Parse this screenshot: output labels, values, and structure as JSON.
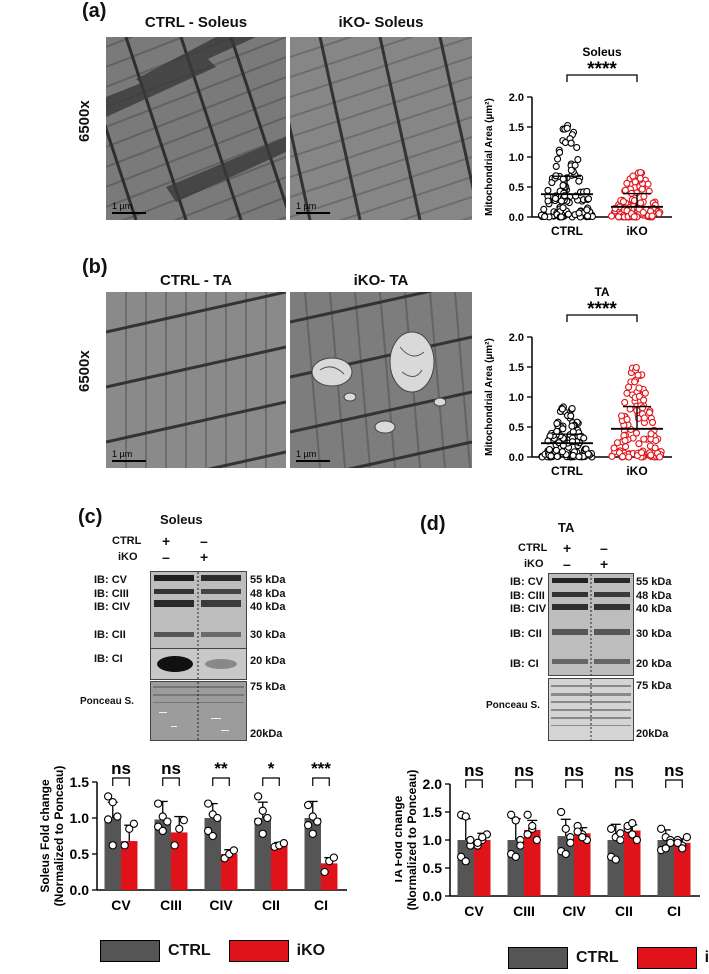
{
  "panels": {
    "a": {
      "letter": "(a)",
      "titles": [
        "CTRL - Soleus",
        "iKO- Soleus"
      ],
      "magnification": "6500x",
      "scale": [
        "1 µm",
        "1 µm"
      ]
    },
    "b": {
      "letter": "(b)",
      "titles": [
        "CTRL - TA",
        "iKO- TA"
      ],
      "magnification": "6500x",
      "scale": [
        "1 µm",
        "1 µm"
      ]
    },
    "c": {
      "letter": "(c)",
      "title": "Soleus",
      "cond_rows": [
        {
          "label": "CTRL",
          "s1": "+",
          "s2": "–"
        },
        {
          "label": "iKO",
          "s1": "–",
          "s2": "+"
        }
      ],
      "blot_labels": [
        "IB: CV",
        "IB: CIII",
        "IB: CIV",
        "IB: CII",
        "IB: CI",
        "Ponceau S."
      ],
      "kda": [
        "55 kDa",
        "48 kDa",
        "40 kDa",
        "30 kDa",
        "20 kDa",
        "75 kDa",
        "20kDa"
      ]
    },
    "d": {
      "letter": "(d)",
      "title": "TA",
      "cond_rows": [
        {
          "label": "CTRL",
          "s1": "+",
          "s2": "–"
        },
        {
          "label": "iKO",
          "s1": "–",
          "s2": "+"
        }
      ],
      "blot_labels": [
        "IB: CV",
        "IB: CIII",
        "IB: CIV",
        "IB: CII",
        "IB: CI",
        "Ponceau S."
      ],
      "kda": [
        "55 kDa",
        "48 kDa",
        "40 kDa",
        "30 kDa",
        "20 kDa",
        "75 kDa",
        "20kDa"
      ]
    }
  },
  "colors": {
    "ctrl": "#555555",
    "iko": "#e0131a",
    "ctrl_point": "#ffffff",
    "iko_point": "#e0131a"
  },
  "legend": {
    "ctrl": "CTRL",
    "iko": "iKO"
  },
  "chart_data": [
    {
      "id": "soleus-area",
      "type": "scatter",
      "title": "Soleus",
      "ylabel": "Mitochondrial Area (µm²)",
      "ylim": [
        0,
        2.0
      ],
      "yticks": [
        "0.0",
        "0.5",
        "1.0",
        "1.5",
        "2.0"
      ],
      "categories": [
        "CTRL",
        "iKO"
      ],
      "means": [
        0.38,
        0.17
      ],
      "sd": [
        0.3,
        0.22
      ],
      "significance": "****",
      "ranges": [
        [
          0.0,
          1.62
        ],
        [
          0.0,
          0.8
        ]
      ]
    },
    {
      "id": "ta-area",
      "type": "scatter",
      "title": "TA",
      "ylabel": "Mitochondrial Area (µm²)",
      "ylim": [
        0,
        2.0
      ],
      "yticks": [
        "0.0",
        "0.5",
        "1.0",
        "1.5",
        "2.0"
      ],
      "categories": [
        "CTRL",
        "iKO"
      ],
      "means": [
        0.23,
        0.47
      ],
      "sd": [
        0.15,
        0.37
      ],
      "significance": "****",
      "ranges": [
        [
          0.0,
          0.85
        ],
        [
          0.0,
          1.52
        ]
      ]
    },
    {
      "id": "soleus-fold",
      "type": "bar",
      "ylabel_lines": [
        "Soleus Fold change",
        "(Normalized to Ponceau)"
      ],
      "ylim": [
        0,
        1.5
      ],
      "yticks": [
        "0.0",
        "0.5",
        "1.0",
        "1.5"
      ],
      "categories": [
        "CV",
        "CIII",
        "CIV",
        "CII",
        "CI"
      ],
      "series": [
        {
          "name": "CTRL",
          "values": [
            1.0,
            0.98,
            1.0,
            1.0,
            1.0
          ],
          "sd": [
            0.22,
            0.25,
            0.2,
            0.22,
            0.23
          ],
          "points": [
            [
              1.3,
              1.22,
              1.02,
              0.98,
              0.62
            ],
            [
              1.2,
              1.02,
              0.95,
              0.88,
              0.82
            ],
            [
              1.2,
              1.05,
              1.0,
              0.82,
              0.75
            ],
            [
              1.3,
              1.1,
              1.0,
              0.95,
              0.78
            ],
            [
              1.18,
              1.02,
              0.95,
              0.9,
              0.78
            ]
          ]
        },
        {
          "name": "iKO",
          "values": [
            0.68,
            0.8,
            0.5,
            0.63,
            0.37
          ],
          "sd": [
            0.22,
            0.22,
            0.06,
            0.03,
            0.08
          ],
          "points": [
            [
              0.62,
              0.85,
              0.92
            ],
            [
              0.62,
              0.85,
              0.97
            ],
            [
              0.44,
              0.5,
              0.55
            ],
            [
              0.6,
              0.62,
              0.65
            ],
            [
              0.25,
              0.4,
              0.45
            ]
          ]
        }
      ],
      "significance": [
        "ns",
        "ns",
        "**",
        "*",
        "***"
      ]
    },
    {
      "id": "ta-fold",
      "type": "bar",
      "ylabel_lines": [
        "TA Fold change",
        "(Normalized to Ponceau)"
      ],
      "ylim": [
        0,
        2.0
      ],
      "yticks": [
        "0.0",
        "0.5",
        "1.0",
        "1.5",
        "2.0"
      ],
      "categories": [
        "CV",
        "CIII",
        "CIV",
        "CII",
        "CI"
      ],
      "series": [
        {
          "name": "CTRL",
          "values": [
            1.0,
            1.0,
            1.07,
            1.0,
            1.0
          ],
          "sd": [
            0.38,
            0.38,
            0.3,
            0.28,
            0.18
          ],
          "points": [
            [
              1.45,
              1.42,
              0.9,
              0.7,
              0.62,
              1.0
            ],
            [
              1.45,
              1.35,
              1.0,
              0.75,
              0.7,
              0.9
            ],
            [
              1.5,
              1.2,
              1.05,
              0.8,
              0.75,
              0.95
            ],
            [
              1.2,
              1.05,
              1.0,
              0.7,
              0.65,
              1.12
            ],
            [
              1.2,
              1.05,
              1.0,
              0.82,
              0.85,
              0.95
            ]
          ]
        },
        {
          "name": "iKO",
          "values": [
            1.0,
            1.18,
            1.12,
            1.17,
            0.95
          ],
          "sd": [
            0.12,
            0.17,
            0.1,
            0.1,
            0.07
          ],
          "points": [
            [
              0.9,
              1.0,
              1.1,
              0.95,
              1.05
            ],
            [
              1.45,
              1.2,
              1.0,
              1.1,
              1.25
            ],
            [
              1.25,
              1.1,
              1.0,
              1.15,
              1.05
            ],
            [
              1.2,
              1.1,
              1.0,
              1.25,
              1.3
            ],
            [
              1.0,
              0.9,
              1.05,
              0.95,
              0.85
            ]
          ]
        }
      ],
      "significance": [
        "ns",
        "ns",
        "ns",
        "ns",
        "ns"
      ]
    }
  ]
}
